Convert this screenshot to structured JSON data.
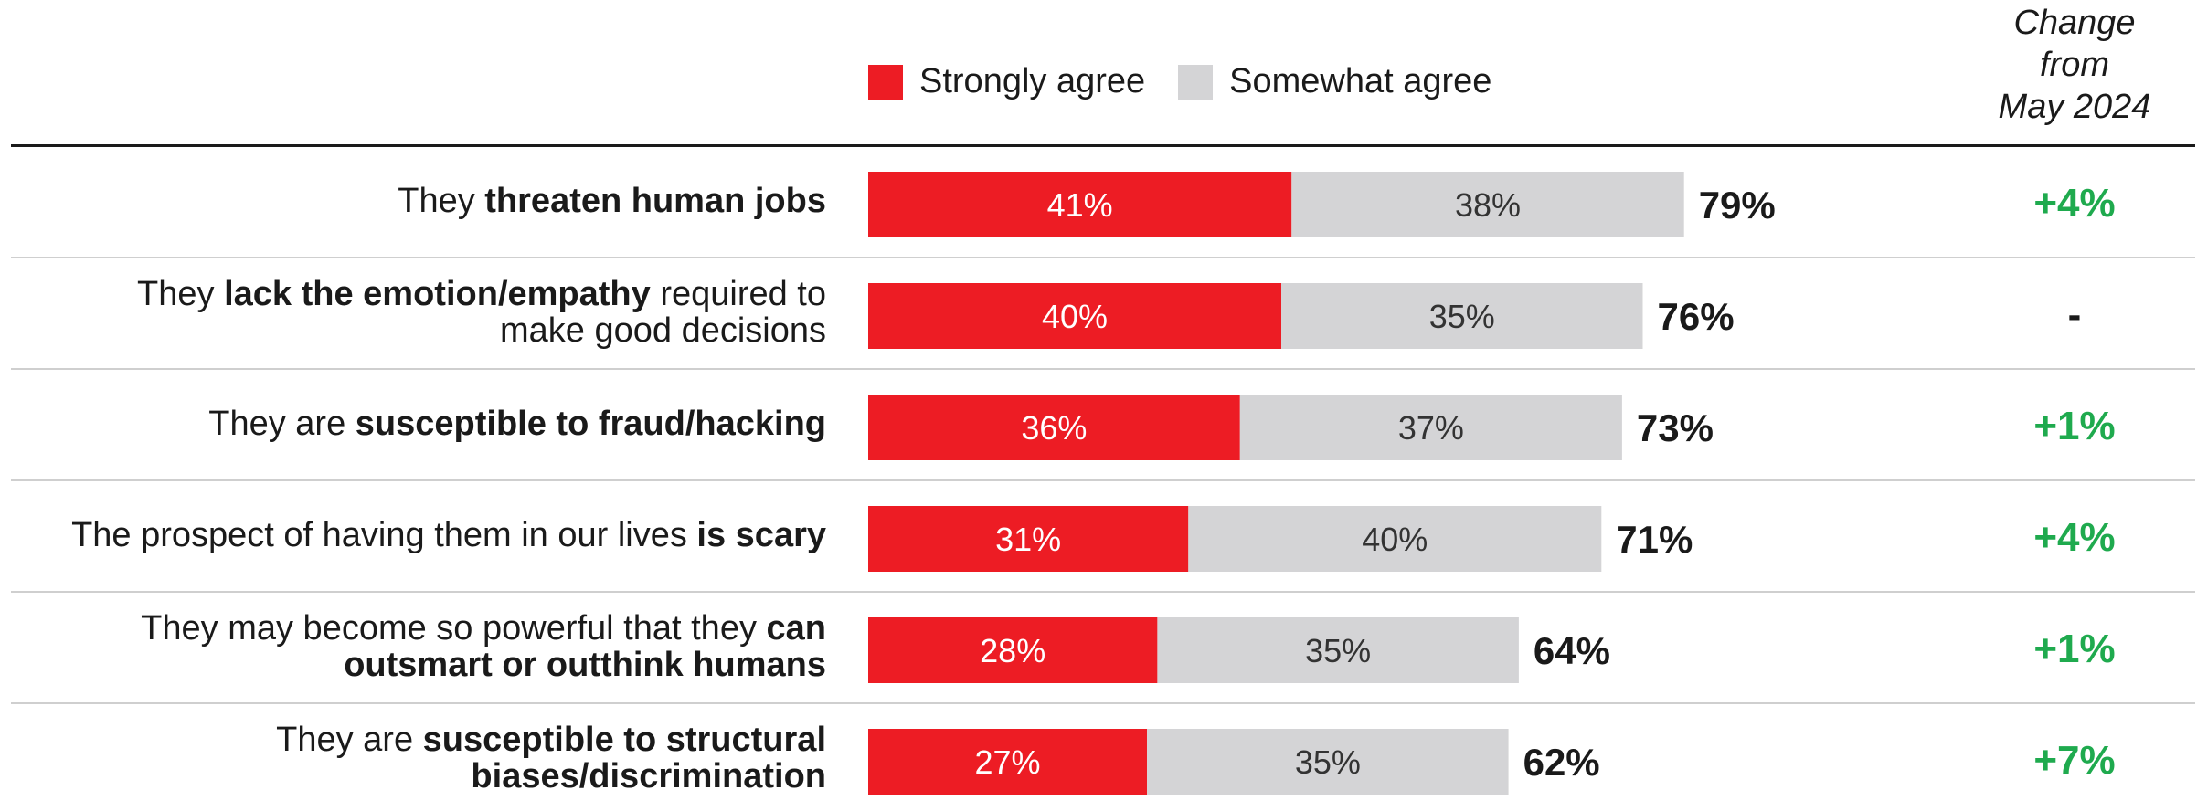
{
  "legend": {
    "strongly": {
      "label": "Strongly agree",
      "color": "#ED1C24"
    },
    "somewhat": {
      "label": "Somewhat agree",
      "color": "#D4D4D6"
    }
  },
  "change_header": [
    "Change",
    "from",
    "May 2024"
  ],
  "change_colors": {
    "positive": "#1FAA4E",
    "none": "#1a1a1a"
  },
  "rows": [
    {
      "label_parts": [
        [
          "They ",
          false
        ],
        [
          "threaten human jobs",
          true
        ]
      ]
    },
    {
      "label_parts": [
        [
          "They ",
          false
        ],
        [
          "lack the emotion/empathy",
          true
        ],
        [
          " required to",
          false
        ],
        [
          "\n",
          false
        ],
        [
          "make good decisions",
          false
        ]
      ]
    },
    {
      "label_parts": [
        [
          "They are ",
          false
        ],
        [
          "susceptible to fraud/hacking",
          true
        ]
      ]
    },
    {
      "label_parts": [
        [
          "The prospect of having them in our lives ",
          false
        ],
        [
          "is scary",
          true
        ]
      ]
    },
    {
      "label_parts": [
        [
          "They may become so powerful that they ",
          false
        ],
        [
          "can",
          true
        ],
        [
          "\n",
          false
        ],
        [
          "outsmart or outthink humans",
          true
        ]
      ]
    },
    {
      "label_parts": [
        [
          "They are ",
          false
        ],
        [
          "susceptible to structural",
          true
        ],
        [
          "\n",
          false
        ],
        [
          "biases/discrimination",
          true
        ]
      ]
    }
  ],
  "chart_data": {
    "type": "bar",
    "orientation": "horizontal",
    "stacked": true,
    "categories": [
      "They threaten human jobs",
      "They lack the emotion/empathy required to make good decisions",
      "They are susceptible to fraud/hacking",
      "The prospect of having them in our lives is scary",
      "They may become so powerful that they can outsmart or outthink humans",
      "They are susceptible to structural biases/discrimination"
    ],
    "series": [
      {
        "name": "Strongly agree",
        "values": [
          41,
          40,
          36,
          31,
          28,
          27
        ],
        "labels": [
          "41%",
          "40%",
          "36%",
          "31%",
          "28%",
          "27%"
        ]
      },
      {
        "name": "Somewhat agree",
        "values": [
          38,
          35,
          37,
          40,
          35,
          35
        ],
        "labels": [
          "38%",
          "35%",
          "37%",
          "40%",
          "35%",
          "35%"
        ]
      }
    ],
    "totals": [
      79,
      76,
      73,
      71,
      64,
      62
    ],
    "total_labels": [
      "79%",
      "76%",
      "73%",
      "71%",
      "64%",
      "62%"
    ],
    "change_from_may_2024": [
      "+4%",
      "-",
      "+1%",
      "+4%",
      "+1%",
      "+7%"
    ],
    "xlim": [
      0,
      100
    ],
    "grid": false,
    "legend_position": "top"
  }
}
